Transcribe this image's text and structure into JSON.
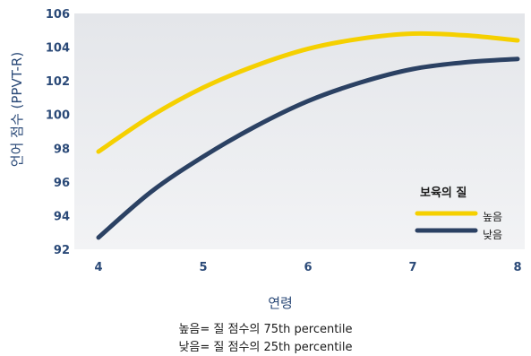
{
  "chart_data": {
    "type": "line",
    "ylabel": "언어 점수  (PPVT-R)",
    "xlabel": "연령",
    "xlim": [
      4,
      8
    ],
    "ylim": [
      92,
      106
    ],
    "x_ticks": [
      4,
      5,
      6,
      7,
      8
    ],
    "y_ticks": [
      92,
      94,
      96,
      98,
      100,
      102,
      104,
      106
    ],
    "grid": false,
    "legend": {
      "title": "보육의 질",
      "placement": "right"
    },
    "series": [
      {
        "name": "높음",
        "color": "#f5d000",
        "x": [
          4,
          4.5,
          5,
          5.5,
          6,
          6.5,
          7,
          7.5,
          8
        ],
        "y": [
          97.8,
          99.9,
          101.6,
          102.9,
          103.9,
          104.5,
          104.8,
          104.7,
          104.4
        ]
      },
      {
        "name": "낮음",
        "color": "#2b4163",
        "x": [
          4,
          4.5,
          5,
          5.5,
          6,
          6.5,
          7,
          7.5,
          8
        ],
        "y": [
          92.7,
          95.4,
          97.5,
          99.3,
          100.8,
          101.9,
          102.7,
          103.1,
          103.3
        ]
      }
    ],
    "notes": [
      "높음= 질 점수의 75th percentile",
      "낮음= 질 점수의 25th percentile"
    ]
  }
}
